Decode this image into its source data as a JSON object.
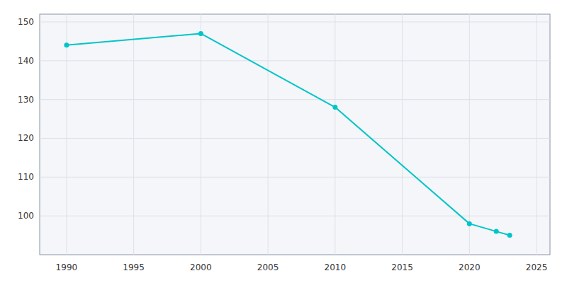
{
  "chart_data": {
    "type": "line",
    "x": [
      1990,
      2000,
      2010,
      2020,
      2022,
      2023
    ],
    "values": [
      144,
      147,
      128,
      98,
      96,
      95
    ],
    "color": "#00C5C8",
    "marker": "circle",
    "xlim": [
      1988,
      2026
    ],
    "ylim": [
      90,
      152
    ],
    "xticks": [
      1990,
      1995,
      2000,
      2005,
      2010,
      2015,
      2020,
      2025
    ],
    "yticks": [
      100,
      110,
      120,
      130,
      140,
      150
    ],
    "grid": true
  }
}
